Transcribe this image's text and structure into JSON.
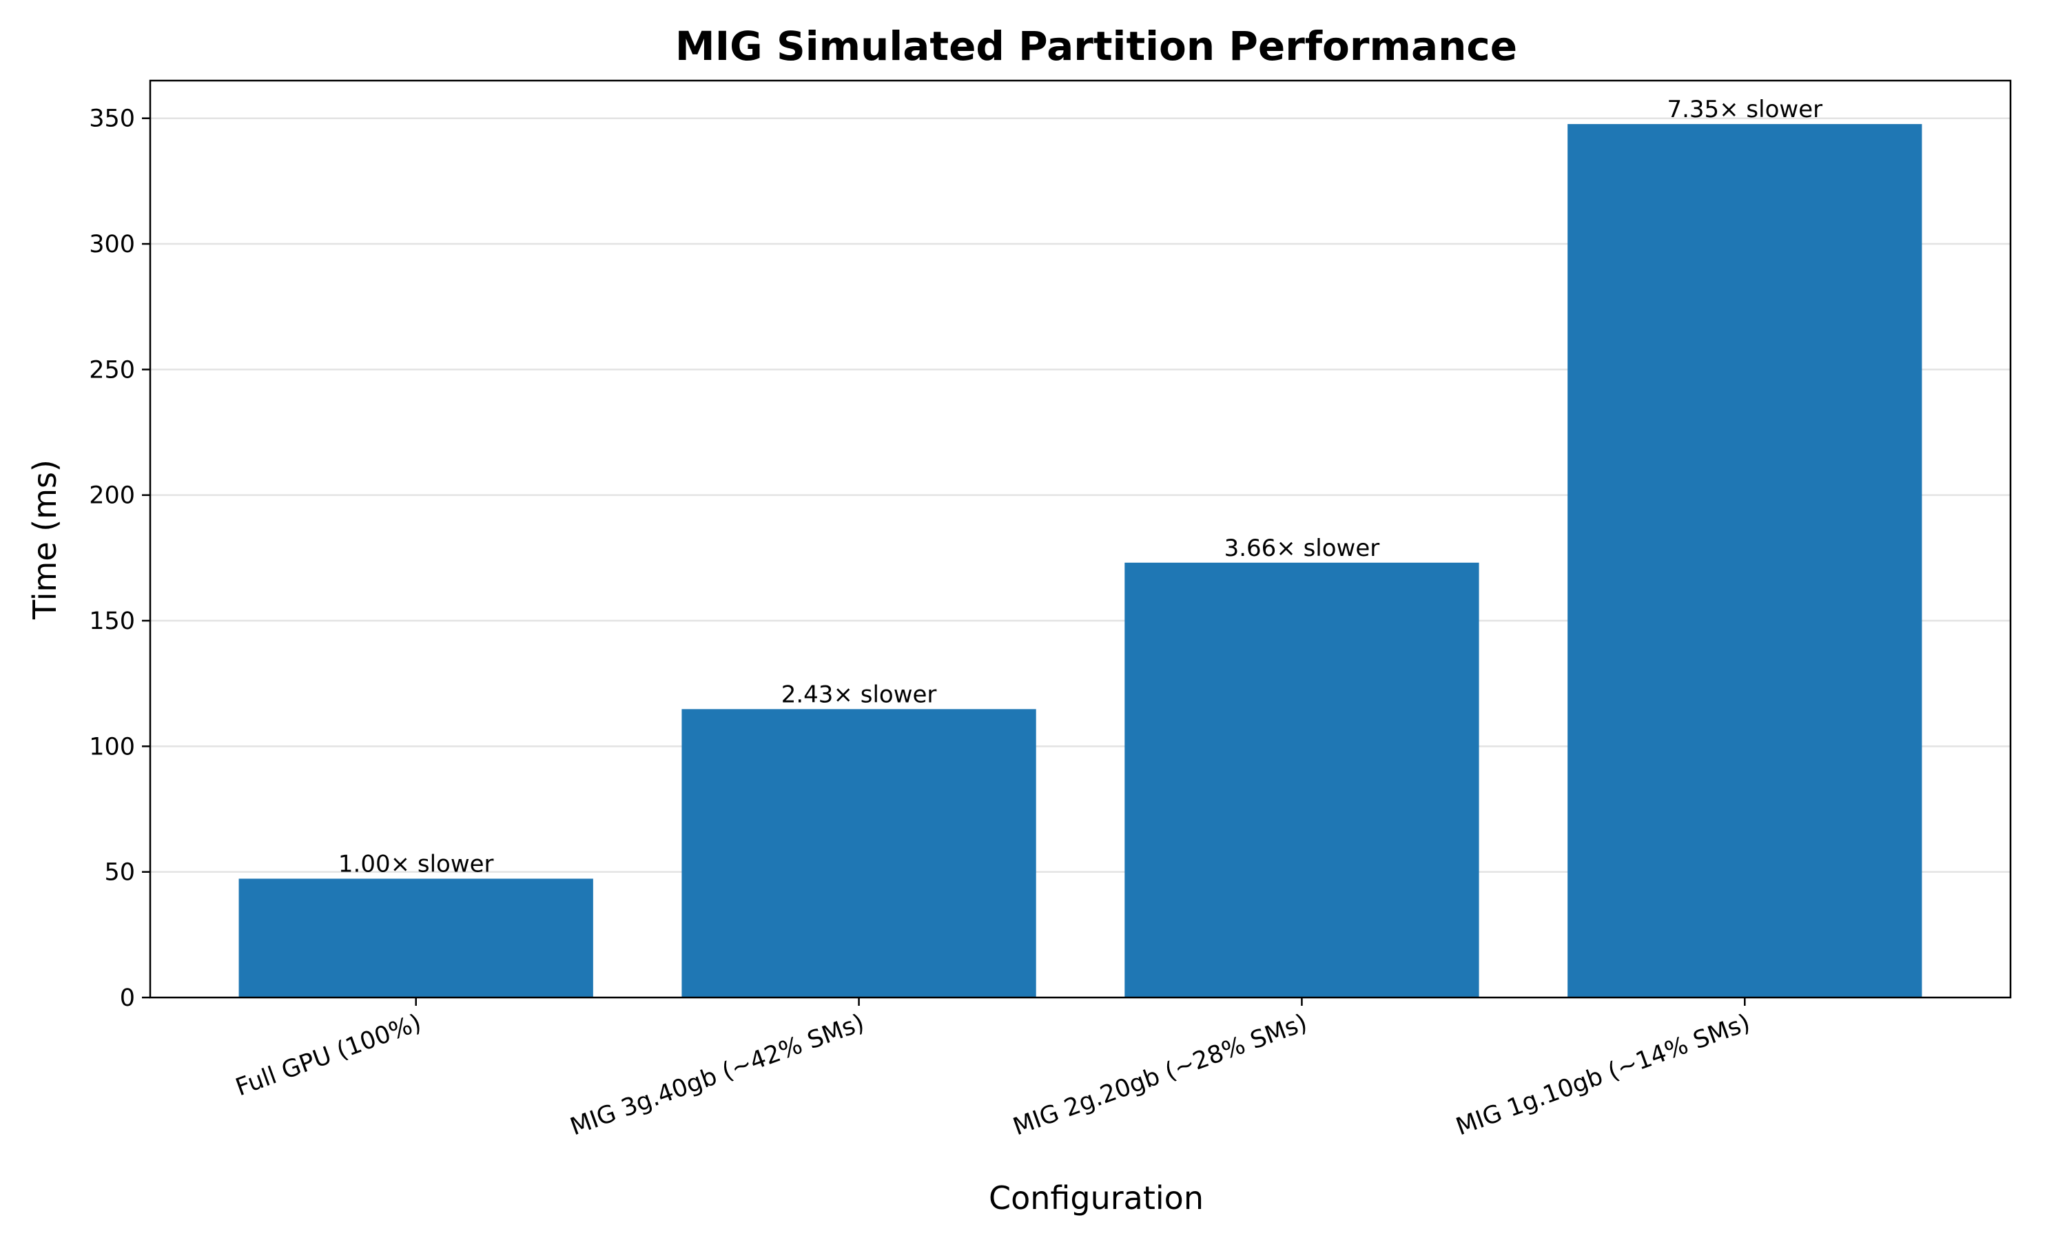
{
  "chart_data": {
    "type": "bar",
    "title": "MIG Simulated Partition Performance",
    "xlabel": "Configuration",
    "ylabel": "Time (ms)",
    "categories": [
      "Full GPU (100%)",
      "MIG 3g.40gb (~42% SMs)",
      "MIG 2g.20gb (~28% SMs)",
      "MIG 1g.10gb (~14% SMs)"
    ],
    "values": [
      47.3,
      114.8,
      173.1,
      347.7
    ],
    "data_labels": [
      "1.00× slower",
      "2.43× slower",
      "3.66× slower",
      "7.35× slower"
    ],
    "ylim": [
      0,
      365
    ],
    "yticks": [
      0,
      50,
      100,
      150,
      200,
      250,
      300,
      350
    ],
    "ytick_labels": [
      "0",
      "50",
      "100",
      "150",
      "200",
      "250",
      "300",
      "350"
    ],
    "grid": "y",
    "bar_color": "#1f77b4"
  }
}
